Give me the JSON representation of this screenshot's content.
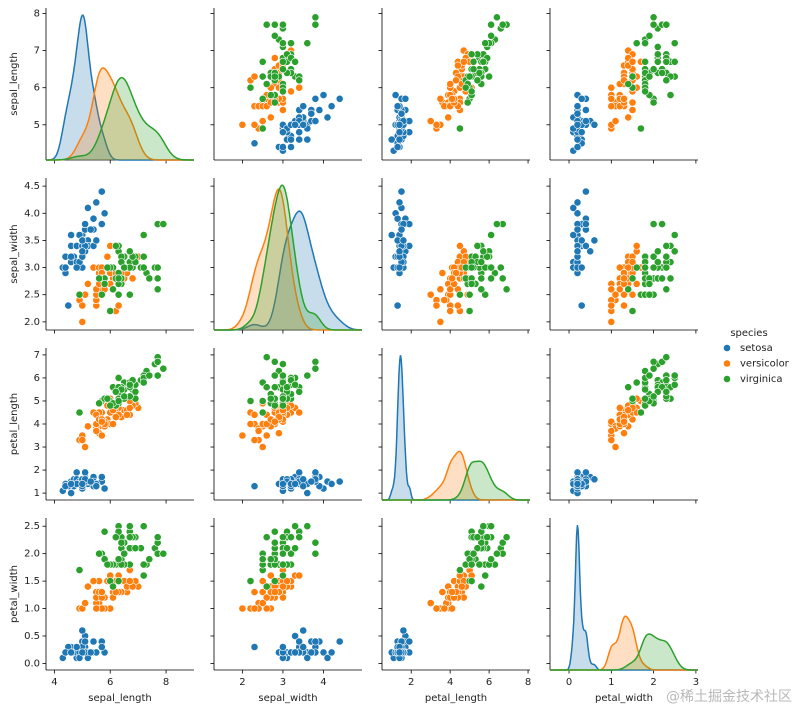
{
  "chart_data": {
    "type": "pairplot",
    "variables": [
      "sepal_length",
      "sepal_width",
      "petal_length",
      "petal_width"
    ],
    "x_axes": [
      {
        "lim": [
          3.7,
          9.0
        ],
        "ticks": [
          4,
          6,
          8
        ]
      },
      {
        "lim": [
          1.3,
          4.95
        ],
        "ticks": [
          2,
          3,
          4
        ]
      },
      {
        "lim": [
          0.5,
          8.1
        ],
        "ticks": [
          2,
          4,
          6,
          8
        ]
      },
      {
        "lim": [
          -0.45,
          3.05
        ],
        "ticks": [
          0,
          1,
          2,
          3
        ]
      }
    ],
    "y_axes": [
      {
        "lim": [
          4.05,
          8.15
        ],
        "ticks": [
          5,
          6,
          7,
          8
        ]
      },
      {
        "lim": [
          1.85,
          4.65
        ],
        "ticks": [
          {
            "value": 2,
            "label": "2.0"
          },
          2.5,
          {
            "value": 3,
            "label": "3.0"
          },
          3.5,
          {
            "value": 4,
            "label": "4.0"
          },
          4.5
        ]
      },
      {
        "lim": [
          0.7,
          7.3
        ],
        "ticks": [
          1,
          2,
          3,
          4,
          5,
          6,
          7
        ]
      },
      {
        "lim": [
          -0.12,
          2.65
        ],
        "ticks": [
          {
            "value": 0,
            "label": "0.0"
          },
          0.5,
          {
            "value": 1,
            "label": "1.0"
          },
          1.5,
          {
            "value": 2,
            "label": "2.0"
          },
          2.5
        ]
      }
    ],
    "legend_title": "species",
    "watermark": "@稀土掘金技术社区",
    "series": [
      {
        "name": "setosa",
        "color": "#1f77b4",
        "values": [
          [
            5.1,
            3.5,
            1.4,
            0.2
          ],
          [
            4.9,
            3.0,
            1.4,
            0.2
          ],
          [
            4.7,
            3.2,
            1.3,
            0.2
          ],
          [
            4.6,
            3.1,
            1.5,
            0.2
          ],
          [
            5.0,
            3.6,
            1.4,
            0.2
          ],
          [
            5.4,
            3.9,
            1.7,
            0.4
          ],
          [
            4.6,
            3.4,
            1.4,
            0.3
          ],
          [
            5.0,
            3.4,
            1.5,
            0.2
          ],
          [
            4.4,
            2.9,
            1.4,
            0.2
          ],
          [
            4.9,
            3.1,
            1.5,
            0.1
          ],
          [
            5.4,
            3.7,
            1.5,
            0.2
          ],
          [
            4.8,
            3.4,
            1.6,
            0.2
          ],
          [
            4.8,
            3.0,
            1.4,
            0.1
          ],
          [
            4.3,
            3.0,
            1.1,
            0.1
          ],
          [
            5.8,
            4.0,
            1.2,
            0.2
          ],
          [
            5.7,
            4.4,
            1.5,
            0.4
          ],
          [
            5.4,
            3.9,
            1.3,
            0.4
          ],
          [
            5.1,
            3.5,
            1.4,
            0.3
          ],
          [
            5.7,
            3.8,
            1.7,
            0.3
          ],
          [
            5.1,
            3.8,
            1.5,
            0.3
          ],
          [
            5.4,
            3.4,
            1.7,
            0.2
          ],
          [
            5.1,
            3.7,
            1.5,
            0.4
          ],
          [
            4.6,
            3.6,
            1.0,
            0.2
          ],
          [
            5.1,
            3.3,
            1.7,
            0.5
          ],
          [
            4.8,
            3.4,
            1.9,
            0.2
          ],
          [
            5.0,
            3.0,
            1.6,
            0.2
          ],
          [
            5.0,
            3.4,
            1.6,
            0.4
          ],
          [
            5.2,
            3.5,
            1.5,
            0.2
          ],
          [
            5.2,
            3.4,
            1.4,
            0.2
          ],
          [
            4.7,
            3.2,
            1.6,
            0.2
          ],
          [
            4.8,
            3.1,
            1.6,
            0.2
          ],
          [
            5.4,
            3.4,
            1.5,
            0.4
          ],
          [
            5.2,
            4.1,
            1.5,
            0.1
          ],
          [
            5.5,
            4.2,
            1.4,
            0.2
          ],
          [
            4.9,
            3.1,
            1.5,
            0.2
          ],
          [
            5.0,
            3.2,
            1.2,
            0.2
          ],
          [
            5.5,
            3.5,
            1.3,
            0.2
          ],
          [
            4.9,
            3.6,
            1.4,
            0.1
          ],
          [
            4.4,
            3.0,
            1.3,
            0.2
          ],
          [
            5.1,
            3.4,
            1.5,
            0.2
          ],
          [
            5.0,
            3.5,
            1.3,
            0.3
          ],
          [
            4.5,
            2.3,
            1.3,
            0.3
          ],
          [
            4.4,
            3.2,
            1.3,
            0.2
          ],
          [
            5.0,
            3.5,
            1.6,
            0.6
          ],
          [
            5.1,
            3.8,
            1.9,
            0.4
          ],
          [
            4.8,
            3.0,
            1.4,
            0.3
          ],
          [
            5.1,
            3.8,
            1.6,
            0.2
          ],
          [
            4.6,
            3.2,
            1.4,
            0.2
          ],
          [
            5.3,
            3.7,
            1.5,
            0.2
          ],
          [
            5.0,
            3.3,
            1.4,
            0.2
          ]
        ]
      },
      {
        "name": "versicolor",
        "color": "#ff7f0e",
        "values": [
          [
            7.0,
            3.2,
            4.7,
            1.4
          ],
          [
            6.4,
            3.2,
            4.5,
            1.5
          ],
          [
            6.9,
            3.1,
            4.9,
            1.5
          ],
          [
            5.5,
            2.3,
            4.0,
            1.3
          ],
          [
            6.5,
            2.8,
            4.6,
            1.5
          ],
          [
            5.7,
            2.8,
            4.5,
            1.3
          ],
          [
            6.3,
            3.3,
            4.7,
            1.6
          ],
          [
            4.9,
            2.4,
            3.3,
            1.0
          ],
          [
            6.6,
            2.9,
            4.6,
            1.3
          ],
          [
            5.2,
            2.7,
            3.9,
            1.4
          ],
          [
            5.0,
            2.0,
            3.5,
            1.0
          ],
          [
            5.9,
            3.0,
            4.2,
            1.5
          ],
          [
            6.0,
            2.2,
            4.0,
            1.0
          ],
          [
            6.1,
            2.9,
            4.7,
            1.4
          ],
          [
            5.6,
            2.9,
            3.6,
            1.3
          ],
          [
            6.7,
            3.1,
            4.4,
            1.4
          ],
          [
            5.6,
            3.0,
            4.5,
            1.5
          ],
          [
            5.8,
            2.7,
            4.1,
            1.0
          ],
          [
            6.2,
            2.2,
            4.5,
            1.5
          ],
          [
            5.6,
            2.5,
            3.9,
            1.1
          ],
          [
            5.9,
            3.2,
            4.8,
            1.8
          ],
          [
            6.1,
            2.8,
            4.0,
            1.3
          ],
          [
            6.3,
            2.5,
            4.9,
            1.5
          ],
          [
            6.1,
            2.8,
            4.7,
            1.2
          ],
          [
            6.4,
            2.9,
            4.3,
            1.3
          ],
          [
            6.6,
            3.0,
            4.4,
            1.4
          ],
          [
            6.8,
            2.8,
            4.8,
            1.4
          ],
          [
            6.7,
            3.0,
            5.0,
            1.7
          ],
          [
            6.0,
            2.9,
            4.5,
            1.5
          ],
          [
            5.7,
            2.6,
            3.5,
            1.0
          ],
          [
            5.5,
            2.4,
            3.8,
            1.1
          ],
          [
            5.5,
            2.4,
            3.7,
            1.0
          ],
          [
            5.8,
            2.7,
            3.9,
            1.2
          ],
          [
            6.0,
            2.7,
            5.1,
            1.6
          ],
          [
            5.4,
            3.0,
            4.5,
            1.5
          ],
          [
            6.0,
            3.4,
            4.5,
            1.6
          ],
          [
            6.7,
            3.1,
            4.7,
            1.5
          ],
          [
            6.3,
            2.3,
            4.4,
            1.3
          ],
          [
            5.6,
            3.0,
            4.1,
            1.3
          ],
          [
            5.5,
            2.5,
            4.0,
            1.3
          ],
          [
            5.5,
            2.6,
            4.4,
            1.2
          ],
          [
            6.1,
            3.0,
            4.6,
            1.4
          ],
          [
            5.8,
            2.6,
            4.0,
            1.2
          ],
          [
            5.0,
            2.3,
            3.3,
            1.0
          ],
          [
            5.6,
            2.7,
            4.2,
            1.3
          ],
          [
            5.7,
            3.0,
            4.2,
            1.2
          ],
          [
            5.7,
            2.9,
            4.2,
            1.3
          ],
          [
            6.2,
            2.9,
            4.3,
            1.3
          ],
          [
            5.1,
            2.5,
            3.0,
            1.1
          ],
          [
            5.7,
            2.8,
            4.1,
            1.3
          ]
        ]
      },
      {
        "name": "virginica",
        "color": "#2ca02c",
        "values": [
          [
            6.3,
            3.3,
            6.0,
            2.5
          ],
          [
            5.8,
            2.7,
            5.1,
            1.9
          ],
          [
            7.1,
            3.0,
            5.9,
            2.1
          ],
          [
            6.3,
            2.9,
            5.6,
            1.8
          ],
          [
            6.5,
            3.0,
            5.8,
            2.2
          ],
          [
            7.6,
            3.0,
            6.6,
            2.1
          ],
          [
            4.9,
            2.5,
            4.5,
            1.7
          ],
          [
            7.3,
            2.9,
            6.3,
            1.8
          ],
          [
            6.7,
            2.5,
            5.8,
            1.8
          ],
          [
            7.2,
            3.6,
            6.1,
            2.5
          ],
          [
            6.5,
            3.2,
            5.1,
            2.0
          ],
          [
            6.4,
            2.7,
            5.3,
            1.9
          ],
          [
            6.8,
            3.0,
            5.5,
            2.1
          ],
          [
            5.7,
            2.5,
            5.0,
            2.0
          ],
          [
            5.8,
            2.8,
            5.1,
            2.4
          ],
          [
            6.4,
            3.2,
            5.3,
            2.3
          ],
          [
            6.5,
            3.0,
            5.5,
            1.8
          ],
          [
            7.7,
            3.8,
            6.7,
            2.2
          ],
          [
            7.7,
            2.6,
            6.9,
            2.3
          ],
          [
            6.0,
            2.2,
            5.0,
            1.5
          ],
          [
            6.9,
            3.2,
            5.7,
            2.3
          ],
          [
            5.6,
            2.8,
            4.9,
            2.0
          ],
          [
            7.7,
            2.8,
            6.7,
            2.0
          ],
          [
            6.3,
            2.7,
            4.9,
            1.8
          ],
          [
            6.7,
            3.3,
            5.7,
            2.1
          ],
          [
            7.2,
            3.2,
            6.0,
            1.8
          ],
          [
            6.2,
            2.8,
            4.8,
            1.8
          ],
          [
            6.1,
            3.0,
            4.9,
            1.8
          ],
          [
            6.4,
            2.8,
            5.6,
            2.1
          ],
          [
            7.2,
            3.0,
            5.8,
            1.6
          ],
          [
            7.4,
            2.8,
            6.1,
            1.9
          ],
          [
            7.9,
            3.8,
            6.4,
            2.0
          ],
          [
            6.4,
            2.8,
            5.6,
            2.2
          ],
          [
            6.3,
            2.8,
            5.1,
            1.5
          ],
          [
            6.1,
            2.6,
            5.6,
            1.4
          ],
          [
            7.7,
            3.0,
            6.1,
            2.3
          ],
          [
            6.3,
            3.4,
            5.6,
            2.4
          ],
          [
            6.4,
            3.1,
            5.5,
            1.8
          ],
          [
            6.0,
            3.0,
            4.8,
            1.8
          ],
          [
            6.9,
            3.1,
            5.4,
            2.1
          ],
          [
            6.7,
            3.1,
            5.6,
            2.4
          ],
          [
            6.9,
            3.1,
            5.1,
            2.3
          ],
          [
            5.8,
            2.7,
            5.1,
            1.9
          ],
          [
            6.8,
            3.2,
            5.9,
            2.3
          ],
          [
            6.7,
            3.3,
            5.7,
            2.5
          ],
          [
            6.7,
            3.0,
            5.2,
            2.3
          ],
          [
            6.3,
            2.5,
            5.0,
            1.9
          ],
          [
            6.5,
            3.0,
            5.2,
            2.0
          ],
          [
            6.2,
            3.4,
            5.4,
            2.3
          ],
          [
            5.9,
            3.0,
            5.1,
            1.8
          ]
        ]
      }
    ]
  }
}
